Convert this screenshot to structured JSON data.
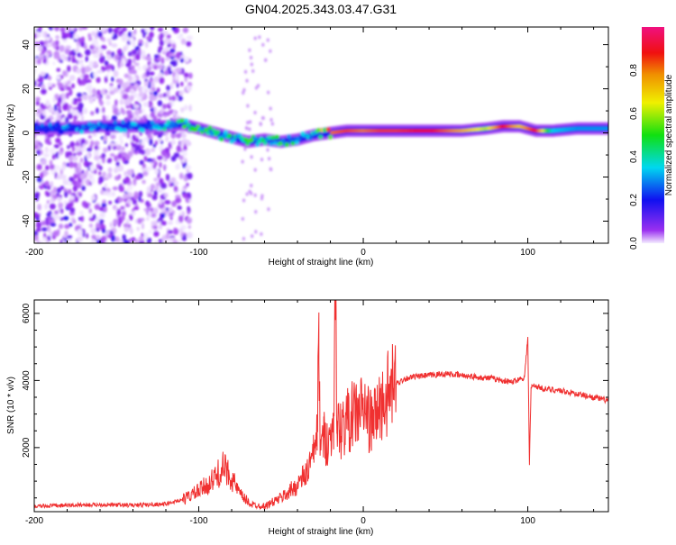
{
  "title": "GN04.2025.343.03.47.G31",
  "chart_data": [
    {
      "type": "heatmap",
      "xlabel": "Height of straight line (km)",
      "ylabel": "Frequency (Hz)",
      "xlim": [
        -200,
        149
      ],
      "ylim": [
        -50,
        48
      ],
      "xticks": [
        -200,
        -100,
        0,
        100
      ],
      "yticks": [
        -40,
        -20,
        0,
        20,
        40
      ],
      "colorbar": {
        "label": "Normalized spectral amplitude",
        "ticks": [
          "0.0",
          "0.2",
          "0.4",
          "0.6",
          "0.8"
        ],
        "range": [
          0,
          1
        ]
      },
      "ridge": [
        {
          "x": -200,
          "f": 2,
          "a": 0.25
        },
        {
          "x": -180,
          "f": 2,
          "a": 0.3
        },
        {
          "x": -160,
          "f": 3,
          "a": 0.3
        },
        {
          "x": -140,
          "f": 3,
          "a": 0.3
        },
        {
          "x": -120,
          "f": 3,
          "a": 0.35
        },
        {
          "x": -110,
          "f": 4,
          "a": 0.45
        },
        {
          "x": -100,
          "f": 2,
          "a": 0.45
        },
        {
          "x": -90,
          "f": 0,
          "a": 0.45
        },
        {
          "x": -80,
          "f": -2,
          "a": 0.4
        },
        {
          "x": -70,
          "f": -4,
          "a": 0.45
        },
        {
          "x": -60,
          "f": -3,
          "a": 0.4
        },
        {
          "x": -50,
          "f": -4,
          "a": 0.45
        },
        {
          "x": -40,
          "f": -3,
          "a": 0.4
        },
        {
          "x": -30,
          "f": -1,
          "a": 0.35
        },
        {
          "x": -20,
          "f": 0,
          "a": 0.8
        },
        {
          "x": -10,
          "f": 1,
          "a": 0.85
        },
        {
          "x": 0,
          "f": 1,
          "a": 0.8
        },
        {
          "x": 10,
          "f": 1,
          "a": 0.85
        },
        {
          "x": 20,
          "f": 1,
          "a": 0.85
        },
        {
          "x": 40,
          "f": 1,
          "a": 0.9
        },
        {
          "x": 60,
          "f": 1,
          "a": 0.75
        },
        {
          "x": 75,
          "f": 2,
          "a": 0.6
        },
        {
          "x": 85,
          "f": 3,
          "a": 0.9
        },
        {
          "x": 95,
          "f": 3,
          "a": 0.7
        },
        {
          "x": 105,
          "f": 1,
          "a": 0.9
        },
        {
          "x": 115,
          "f": 1,
          "a": 0.35
        },
        {
          "x": 130,
          "f": 2,
          "a": 0.3
        },
        {
          "x": 149,
          "f": 2,
          "a": 0.3
        }
      ],
      "noise_region": [
        -200,
        -110
      ]
    },
    {
      "type": "line",
      "xlabel": "Height of straight line (km)",
      "ylabel": "SNR (10 * v/v)",
      "xlim": [
        -200,
        149
      ],
      "ylim": [
        90,
        6400
      ],
      "xticks": [
        -200,
        -100,
        0,
        100
      ],
      "yticks": [
        2000,
        4000,
        6000
      ],
      "color": "#f03030",
      "series": {
        "x": [
          -200,
          -180,
          -160,
          -140,
          -120,
          -110,
          -100,
          -92,
          -85,
          -80,
          -75,
          -68,
          -60,
          -50,
          -42,
          -35,
          -30,
          -28,
          -27,
          -26,
          -24,
          -20,
          -18,
          -17,
          -16,
          -14,
          -10,
          -5,
          0,
          5,
          10,
          15,
          20,
          25,
          30,
          40,
          50,
          60,
          70,
          80,
          90,
          98,
          100,
          101,
          102,
          104,
          110,
          120,
          130,
          140,
          149
        ],
        "y": [
          250,
          280,
          300,
          280,
          320,
          450,
          700,
          1000,
          1400,
          1100,
          600,
          300,
          250,
          500,
          800,
          1200,
          1800,
          2600,
          4550,
          2000,
          2300,
          2200,
          3000,
          6400,
          2800,
          2500,
          2800,
          3000,
          3200,
          2700,
          3200,
          3600,
          3900,
          4050,
          4100,
          4150,
          4200,
          4150,
          4100,
          4050,
          3950,
          4100,
          5300,
          1500,
          3800,
          3850,
          3750,
          3700,
          3600,
          3500,
          3400
        ]
      }
    }
  ]
}
